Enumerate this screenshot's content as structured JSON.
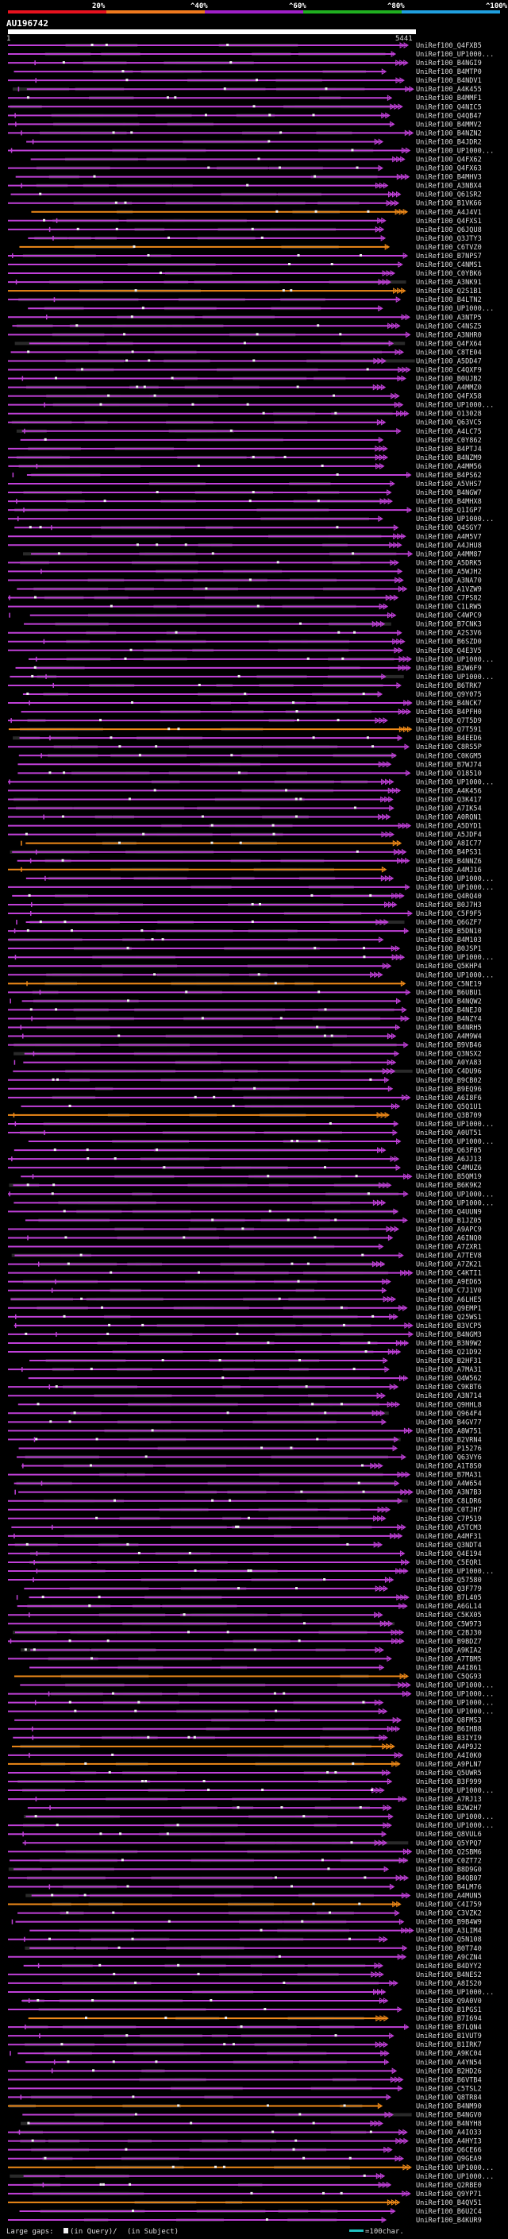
{
  "chart_data": {
    "type": "alignment-overview",
    "query_id": "AU196742",
    "query_start": "1",
    "query_length": "5441",
    "identity_scale": {
      "ticks": [
        "20%",
        "^40%",
        "^60%",
        "^80%",
        "^100%"
      ],
      "colors": [
        "#e8121e",
        "#f07a1e",
        "#a020c8",
        "#20b020",
        "#20a0e0"
      ]
    },
    "colors": {
      "purple": "#c040d8",
      "orange": "#f08a18",
      "gap": "#f0f0f0",
      "dim": "#2a2a2a"
    },
    "hits": [
      "UniRef100_Q4FXB5",
      "UniRef100_UP1000...",
      "UniRef100_B4NGI9",
      "UniRef100_B4MTP0",
      "UniRef100_B4NDV1",
      "UniRef100_A4K455",
      "UniRef100_B4MMF1",
      "UniRef100_Q4NIC5",
      "UniRef100_Q4QB47",
      "UniRef100_B4MMV2",
      "UniRef100_B4NZN2",
      "UniRef100_B4JDR2",
      "UniRef100_UP1000...",
      "UniRef100_Q4FX62",
      "UniRef100_Q4FX63",
      "UniRef100_B4MHV3",
      "UniRef100_A3NBX4",
      "UniRef100_Q61SR2",
      "UniRef100_B1VK66",
      "UniRef100_A4J4V1",
      "UniRef100_Q4FXS1",
      "UniRef100_Q6JQU8",
      "UniRef100_Q3JTY3",
      "UniRef100_C6TVZ0",
      "UniRef100_B7NPS7",
      "UniRef100_C4NMS1",
      "UniRef100_C0YBK6",
      "UniRef100_A3NK91",
      "UniRef100_Q2S1B1",
      "UniRef100_B4LTN2",
      "UniRef100_UP1000...",
      "UniRef100_A3NTP5",
      "UniRef100_C4NSZ5",
      "UniRef100_A3NHR0",
      "UniRef100_Q4FX64",
      "UniRef100_C8TE04",
      "UniRef100_A5DD47",
      "UniRef100_C4QXF9",
      "UniRef100_B0UJB2",
      "UniRef100_A4MMZ0",
      "UniRef100_Q4FX58",
      "UniRef100_UP1000...",
      "UniRef100_O13028",
      "UniRef100_Q63VC5",
      "UniRef100_A4LC75",
      "UniRef100_C0Y862",
      "UniRef100_B4PTJ4",
      "UniRef100_B4NZM9",
      "UniRef100_A4MM56",
      "UniRef100_B4PS62",
      "UniRef100_A5VHS7",
      "UniRef100_B4NGW7",
      "UniRef100_B4MHX8",
      "UniRef100_Q1IGP7",
      "UniRef100_UP1000...",
      "UniRef100_Q4SGY7",
      "UniRef100_A4M5V7",
      "UniRef100_A4JHU8",
      "UniRef100_A4MM87",
      "UniRef100_A5DRK5",
      "UniRef100_A5WJH2",
      "UniRef100_A3NA70",
      "UniRef100_A1VZW9",
      "UniRef100_C7PS82",
      "UniRef100_C1LRW5",
      "UniRef100_C4WPC9",
      "UniRef100_B7CNK3",
      "UniRef100_A2S3V6",
      "UniRef100_B6SZD0",
      "UniRef100_Q4E3V5",
      "UniRef100_UP1000...",
      "UniRef100_B2W6F9",
      "UniRef100_UP1000...",
      "UniRef100_B6TRK7",
      "UniRef100_Q9Y075",
      "UniRef100_B4NCK7",
      "UniRef100_B4PFH0",
      "UniRef100_Q7T5D9",
      "UniRef100_Q7T591",
      "UniRef100_B4EED6",
      "UniRef100_C8RS5P",
      "UniRef100_C0KGM5",
      "UniRef100_B7WJ74",
      "UniRef100_O18510",
      "UniRef100_UP1000...",
      "UniRef100_A4K456",
      "UniRef100_Q3K417",
      "UniRef100_A7IK54",
      "UniRef100_A0RQN1",
      "UniRef100_A5DYD1",
      "UniRef100_A5JDF4",
      "UniRef100_A8IC77",
      "UniRef100_B4PS31",
      "UniRef100_B4NNZ6",
      "UniRef100_A4MJ16",
      "UniRef100_UP1000...",
      "UniRef100_UP1000...",
      "UniRef100_Q4RQ40",
      "UniRef100_B0J7H3",
      "UniRef100_C5F9F5",
      "UniRef100_Q6GZF7",
      "UniRef100_B5DN10",
      "UniRef100_B4M103",
      "UniRef100_B0JSP1",
      "UniRef100_UP1000...",
      "UniRef100_Q5KHP4",
      "UniRef100_UP1000...",
      "UniRef100_C5NE19",
      "UniRef100_B6UBU1",
      "UniRef100_B4NQW2",
      "UniRef100_B4NEJ0",
      "UniRef100_B4NZY4",
      "UniRef100_B4NRH5",
      "UniRef100_A4M9W4",
      "UniRef100_B9VB46",
      "UniRef100_Q3NSX2",
      "UniRef100_A0YA83",
      "UniRef100_C4DU96",
      "UniRef100_B9CB02",
      "UniRef100_B9EQ96",
      "UniRef100_A6I8F6",
      "UniRef100_Q5Q1U1",
      "UniRef100_Q3B709",
      "UniRef100_UP1000...",
      "UniRef100_A0UT51",
      "UniRef100_UP1000...",
      "UniRef100_Q63F05",
      "UniRef100_A6JJ13",
      "UniRef100_C4MUZ6",
      "UniRef100_B5QM19",
      "UniRef100_B6K9K2",
      "UniRef100_UP1000...",
      "UniRef100_UP1000...",
      "UniRef100_Q4UUN9",
      "UniRef100_B1JZ05",
      "UniRef100_A9APC9",
      "UniRef100_A6INQ0",
      "UniRef100_A7ZXR1",
      "UniRef100_A7TEV8",
      "UniRef100_A7ZK21",
      "UniRef100_C4KTI1",
      "UniRef100_A9ED65",
      "UniRef100_C7J1V0",
      "UniRef100_A6LHE5",
      "UniRef100_Q9EMP1",
      "UniRef100_Q25WS1",
      "UniRef100_B3VCP5",
      "UniRef100_B4NGM3",
      "UniRef100_B3N9W2",
      "UniRef100_Q21D92",
      "UniRef100_B2HF31",
      "UniRef100_A7MA31",
      "UniRef100_Q4W562",
      "UniRef100_C9KBT6",
      "UniRef100_A3N714",
      "UniRef100_Q9HHL8",
      "UniRef100_Q964F4",
      "UniRef100_B4GV77",
      "UniRef100_A8W751",
      "UniRef100_B2VRN4",
      "UniRef100_P15276",
      "UniRef100_Q63VY6",
      "UniRef100_A1T8S0",
      "UniRef100_B7MA31",
      "UniRef100_A4W654",
      "UniRef100_A3N7B3",
      "UniRef100_C8LDR6",
      "UniRef100_C0TJH7",
      "UniRef100_C7P519",
      "UniRef100_A5TCM3",
      "UniRef100_A4MF31",
      "UniRef100_Q3NDT4",
      "UniRef100_Q4E194",
      "UniRef100_C5EQR1",
      "UniRef100_UP1000...",
      "UniRef100_Q57580",
      "UniRef100_Q3F779",
      "UniRef100_B7L405",
      "UniRef100_A6GL14",
      "UniRef100_C5KX05",
      "UniRef100_C5W973",
      "UniRef100_C2BJ30",
      "UniRef100_B9BDZ7",
      "UniRef100_A9KIA2",
      "UniRef100_A7TBM5",
      "UniRef100_A4I861",
      "UniRef100_C5QG93",
      "UniRef100_UP1000...",
      "UniRef100_UP1000...",
      "UniRef100_UP1000...",
      "UniRef100_UP1000...",
      "UniRef100_Q8FMS3",
      "UniRef100_B6IHB8",
      "UniRef100_B3IYI9",
      "UniRef100_A4P9J2",
      "UniRef100_A4I0K0",
      "UniRef100_A9PLN7",
      "UniRef100_Q5UWR5",
      "UniRef100_B3F999",
      "UniRef100_UP1000...",
      "UniRef100_A7RJ13",
      "UniRef100_B2W2H7",
      "UniRef100_UP1000...",
      "UniRef100_UP1000...",
      "UniRef100_Q8VUL6",
      "UniRef100_Q5YPQ7",
      "UniRef100_Q2SBM6",
      "UniRef100_C0ZT72",
      "UniRef100_B8D9G0",
      "UniRef100_B4QB07",
      "UniRef100_B4LM76",
      "UniRef100_A4MUN5",
      "UniRef100_C4I759",
      "UniRef100_C3VZK2",
      "UniRef100_B9B4W9",
      "UniRef100_A3LIM4",
      "UniRef100_Q5N108",
      "UniRef100_B0T740",
      "UniRef100_A9CZN4",
      "UniRef100_B4DYY2",
      "UniRef100_B4NES2",
      "UniRef100_A8IS20",
      "UniRef100_UP1000...",
      "UniRef100_Q9A0V0",
      "UniRef100_B1PGS1",
      "UniRef100_B7I694",
      "UniRef100_B7LQN4",
      "UniRef100_B1VUT9",
      "UniRef100_B1IRK7",
      "UniRef100_A9KC04",
      "UniRef100_A4YN54",
      "UniRef100_B2HD26",
      "UniRef100_B6VTB4",
      "UniRef100_C5TSL2",
      "UniRef100_Q8TR84",
      "UniRef100_B4NM90",
      "UniRef100_B4NGV0",
      "UniRef100_B4NYH8",
      "UniRef100_A4IO33",
      "UniRef100_A4HYI3",
      "UniRef100_Q6CE66",
      "UniRef100_Q9GEA9",
      "UniRef100_UP1000...",
      "UniRef100_UP1000...",
      "UniRef100_Q2RBE0",
      "UniRef100_Q9YP71",
      "UniRef100_B4QV51",
      "UniRef100_B6U2C4",
      "UniRef100_B4KUR9"
    ],
    "legend": {
      "prefix": "Large gaps:",
      "query_part": "(in Query)/",
      "subject_part": "(in Subject)",
      "scale_text": "=100char."
    }
  }
}
